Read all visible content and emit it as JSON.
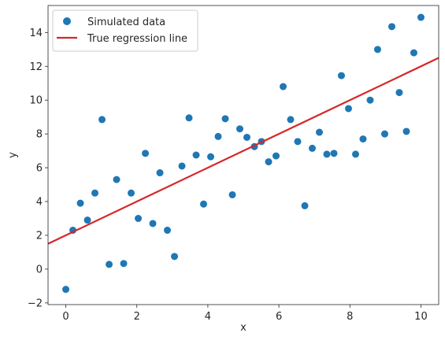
{
  "chart_data": {
    "type": "scatter",
    "xlabel": "x",
    "ylabel": "y",
    "xlim": [
      -0.5,
      10.5
    ],
    "ylim": [
      -2.1,
      15.6
    ],
    "xticks": [
      0,
      2,
      4,
      6,
      8,
      10
    ],
    "yticks": [
      -2,
      0,
      2,
      4,
      6,
      8,
      10,
      12,
      14
    ],
    "grid": false,
    "legend_position": "top-left",
    "series": [
      {
        "name": "Simulated data",
        "kind": "scatter",
        "color": "#1f77b4",
        "x": [
          0.0,
          0.2,
          0.41,
          0.61,
          0.82,
          1.02,
          1.22,
          1.43,
          1.63,
          1.84,
          2.04,
          2.24,
          2.45,
          2.65,
          2.86,
          3.06,
          3.27,
          3.47,
          3.67,
          3.88,
          4.08,
          4.29,
          4.49,
          4.69,
          4.9,
          5.1,
          5.31,
          5.51,
          5.71,
          5.92,
          6.12,
          6.33,
          6.53,
          6.73,
          6.94,
          7.14,
          7.35,
          7.55,
          7.76,
          7.96,
          8.16,
          8.37,
          8.57,
          8.78,
          8.98,
          9.18,
          9.39,
          9.59,
          9.8,
          10.0
        ],
        "y": [
          -1.2,
          2.3,
          3.9,
          2.9,
          4.5,
          8.85,
          0.28,
          5.3,
          0.33,
          4.5,
          3.0,
          6.85,
          2.7,
          5.7,
          2.3,
          0.75,
          6.1,
          8.95,
          6.75,
          3.85,
          6.65,
          7.85,
          8.9,
          4.4,
          8.3,
          7.8,
          7.25,
          7.55,
          6.35,
          6.7,
          10.8,
          8.85,
          7.55,
          3.75,
          7.15,
          8.1,
          6.8,
          6.85,
          11.45,
          9.5,
          6.8,
          7.7,
          10.0,
          13.0,
          8.0,
          14.35,
          10.45,
          8.15,
          12.8,
          14.9
        ]
      },
      {
        "name": "True regression line",
        "kind": "line",
        "color": "#d62728",
        "x": [
          -0.5,
          10.5
        ],
        "y": [
          1.5,
          12.5
        ]
      }
    ]
  }
}
